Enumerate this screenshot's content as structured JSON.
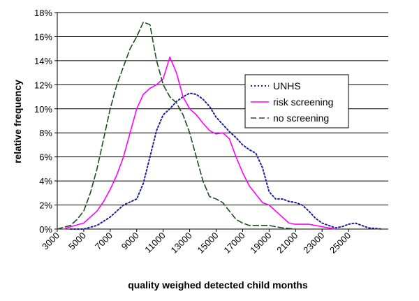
{
  "chart_data": {
    "type": "line",
    "title": "",
    "xlabel": "quality weighed detected child months",
    "ylabel": "relative frequency",
    "xlim": [
      3000,
      28000
    ],
    "ylim": [
      0,
      18
    ],
    "yticks": [
      0,
      2,
      4,
      6,
      8,
      10,
      12,
      14,
      16,
      18
    ],
    "ytick_labels": [
      "0%",
      "2%",
      "4%",
      "6%",
      "8%",
      "10%",
      "12%",
      "14%",
      "16%",
      "18%"
    ],
    "xticks": [
      3000,
      5000,
      7000,
      9000,
      11000,
      13000,
      15000,
      17000,
      19000,
      21000,
      23000,
      25000
    ],
    "xtick_labels": [
      "3000",
      "5000",
      "7000",
      "9000",
      "11000",
      "13000",
      "15000",
      "17000",
      "19000",
      "21000",
      "23000",
      "25000"
    ],
    "grid": "horizontal",
    "legend_position": "right",
    "series": [
      {
        "name": "UNHS",
        "color": "#1c1c9e",
        "dash": "dotted",
        "x": [
          4000,
          5000,
          6000,
          7000,
          8000,
          9000,
          9500,
          10000,
          10500,
          11000,
          11500,
          12000,
          12500,
          13000,
          13500,
          14000,
          14500,
          15000,
          15500,
          16000,
          16500,
          17000,
          17500,
          18000,
          18500,
          19000,
          19500,
          20000,
          20500,
          21000,
          21500,
          22000,
          22500,
          23000,
          23500,
          24000,
          24500,
          25000,
          25500,
          26000,
          26500,
          27000,
          27500
        ],
        "values": [
          0,
          0,
          0.3,
          1.0,
          2.0,
          2.5,
          3.8,
          6.0,
          8.2,
          9.5,
          10.0,
          10.6,
          11.0,
          11.3,
          11.2,
          10.8,
          10.2,
          9.3,
          8.7,
          8.1,
          7.6,
          7.0,
          6.6,
          6.3,
          5.1,
          3.1,
          2.5,
          2.5,
          2.3,
          2.2,
          2.0,
          1.5,
          0.9,
          0.5,
          0.3,
          0.1,
          0.2,
          0.4,
          0.5,
          0.3,
          0.1,
          0.05,
          0
        ]
      },
      {
        "name": "risk screening",
        "color": "#ff00ff",
        "dash": "solid",
        "x": [
          3500,
          4000,
          5000,
          6000,
          6500,
          7000,
          7500,
          8000,
          8500,
          9000,
          9500,
          10000,
          10500,
          11000,
          11500,
          12000,
          12500,
          13000,
          13500,
          14000,
          14500,
          15000,
          15500,
          16000,
          16500,
          17000,
          17500,
          18000,
          18500,
          19000,
          19500,
          20000,
          20500,
          21000,
          21500,
          22000,
          22500,
          23000,
          23500,
          24000
        ],
        "values": [
          0,
          0.2,
          0.5,
          1.5,
          2.3,
          3.3,
          4.5,
          6.0,
          8.0,
          10.0,
          11.2,
          11.7,
          12.0,
          12.5,
          14.3,
          13.0,
          11.0,
          10.0,
          9.5,
          8.8,
          8.2,
          7.9,
          8.0,
          7.5,
          6.0,
          4.7,
          3.6,
          2.9,
          2.2,
          2.0,
          1.5,
          1.0,
          0.5,
          0.4,
          0.4,
          0.4,
          0.3,
          0.2,
          0.1,
          0
        ]
      },
      {
        "name": "no screening",
        "color": "#1e4d1e",
        "dash": "dashed",
        "x": [
          3000,
          4000,
          4500,
          5000,
          5500,
          6000,
          6500,
          7000,
          7500,
          8000,
          8500,
          9000,
          9500,
          10000,
          10500,
          11000,
          11500,
          12000,
          12500,
          13000,
          13500,
          14000,
          14500,
          15000,
          15500,
          16000,
          16500,
          17000,
          17500,
          18000,
          18500,
          19000,
          19500,
          20000,
          21000
        ],
        "values": [
          0,
          0.3,
          0.8,
          1.5,
          3.0,
          5.0,
          7.5,
          10.0,
          12.0,
          13.5,
          15.0,
          16.0,
          17.2,
          17.0,
          14.0,
          12.0,
          11.0,
          10.5,
          9.5,
          8.0,
          6.0,
          4.0,
          2.7,
          2.5,
          2.2,
          1.5,
          0.8,
          0.5,
          0.3,
          0.3,
          0.3,
          0.3,
          0.2,
          0.1,
          0
        ]
      }
    ]
  }
}
